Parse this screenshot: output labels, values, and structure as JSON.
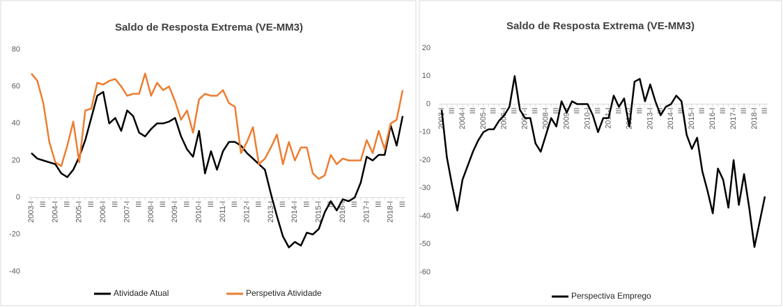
{
  "chart_data": [
    {
      "type": "line",
      "title": "Saldo de Resposta Extrema (VE-MM3)",
      "categories": [
        "2003-I",
        null,
        "III",
        null,
        "2004-I",
        null,
        "III",
        null,
        "2005-I",
        null,
        "III",
        null,
        "2006-I",
        null,
        "III",
        null,
        "2007-I",
        null,
        "III",
        null,
        "2008-I",
        null,
        "III",
        null,
        "2009-I",
        null,
        "III",
        null,
        "2010-I",
        null,
        "III",
        null,
        "2011-I",
        null,
        "III",
        null,
        "2012-I",
        null,
        "III",
        null,
        "2013-I",
        null,
        "III",
        null,
        "2014-I",
        null,
        "III",
        null,
        "2015-I",
        null,
        "III",
        null,
        "2016-I",
        null,
        "III",
        null,
        "2017-I",
        null,
        "III",
        null,
        "2018-I",
        null,
        "III"
      ],
      "series": [
        {
          "name": "Atividade Atual",
          "color": "#000000",
          "values": [
            24,
            21,
            20,
            19,
            18,
            13,
            11,
            15,
            22,
            31,
            43,
            55,
            57,
            40,
            43,
            36,
            47,
            44,
            35,
            33,
            37,
            40,
            40,
            41,
            43,
            33,
            26,
            22,
            36,
            13,
            25,
            15,
            25,
            30,
            30,
            28,
            24,
            21,
            18,
            15,
            2,
            -10,
            -21,
            -27,
            -24,
            -26,
            -19,
            -20,
            -17,
            -8,
            -2,
            -7,
            -1,
            -2,
            0,
            8,
            22,
            20,
            23,
            23,
            39,
            28,
            44
          ]
        },
        {
          "name": "Perspetiva Atividade",
          "color": "#ed7d31",
          "values": [
            67,
            63,
            51,
            30,
            19,
            17,
            28,
            41,
            19,
            47,
            48,
            62,
            61,
            63,
            64,
            60,
            55,
            56,
            56,
            67,
            55,
            62,
            58,
            60,
            52,
            42,
            47,
            35,
            53,
            56,
            55,
            55,
            58,
            51,
            49,
            24,
            30,
            38,
            18,
            21,
            27,
            34,
            18,
            30,
            20,
            27,
            27,
            13,
            10,
            12,
            23,
            18,
            21,
            20,
            20,
            20,
            31,
            24,
            36,
            26,
            40,
            42,
            58
          ]
        }
      ],
      "ylim": [
        -40,
        80
      ],
      "yticks": [
        -40,
        -20,
        0,
        20,
        40,
        60,
        80
      ]
    },
    {
      "type": "line",
      "title": "Saldo de Resposta Extrema (VE-MM3)",
      "categories": [
        "2003-I",
        null,
        "III",
        null,
        "2004-I",
        null,
        "III",
        null,
        "2005-I",
        null,
        "III",
        null,
        "2006-I",
        null,
        "III",
        null,
        "2007-I",
        null,
        "III",
        null,
        "2008-I",
        null,
        "III",
        null,
        "2009-I",
        null,
        "III",
        null,
        "2010-I",
        null,
        "III",
        null,
        "2011-I",
        null,
        "III",
        null,
        "2012-I",
        null,
        "III",
        null,
        "2013-I",
        null,
        "III",
        null,
        "2014-I",
        null,
        "III",
        null,
        "2015-I",
        null,
        "III",
        null,
        "2016-I",
        null,
        "III",
        null,
        "2017-I",
        null,
        "III",
        null,
        "2018-I",
        null,
        "III"
      ],
      "series": [
        {
          "name": "Perspectiva Emprego",
          "color": "#000000",
          "values": [
            -2,
            -19,
            -29,
            -38,
            -27,
            -22,
            -17,
            -13,
            -10,
            -9,
            -9,
            -6,
            -4,
            -1,
            10,
            -2,
            -5,
            -5,
            -14,
            -17,
            -11,
            -5,
            -8,
            1,
            -3,
            1,
            0,
            0,
            0,
            -4,
            -10,
            -5,
            -5,
            3,
            -1,
            2,
            -8,
            8,
            9,
            1,
            7,
            1,
            -4,
            -1,
            0,
            3,
            1,
            -11,
            -16,
            -12,
            -24,
            -31,
            -39,
            -23,
            -27,
            -37,
            -20,
            -36,
            -25,
            -37,
            -51,
            -42,
            -33
          ]
        }
      ],
      "ylim": [
        -60,
        20
      ],
      "yticks": [
        -60,
        -50,
        -40,
        -30,
        -20,
        -10,
        0,
        10,
        20
      ]
    }
  ]
}
